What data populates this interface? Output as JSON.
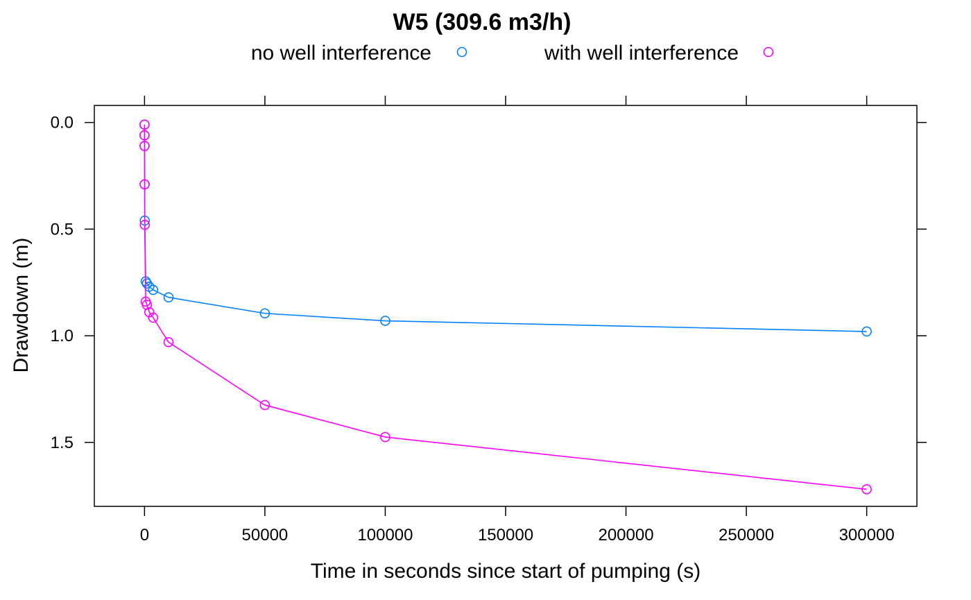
{
  "chart_data": {
    "type": "line",
    "title": "W5 (309.6 m3/h)",
    "xlabel": "Time in seconds since start of pumping (s)",
    "ylabel": "Drawdown (m)",
    "xlim": [
      -20850,
      320850
    ],
    "ylim": [
      1.8,
      -0.08
    ],
    "y_axis_reversed": true,
    "x_ticks": [
      0,
      50000,
      100000,
      150000,
      200000,
      250000,
      300000
    ],
    "y_ticks": [
      0.0,
      0.5,
      1.0,
      1.5
    ],
    "x_tick_labels": [
      "0",
      "50000",
      "100000",
      "150000",
      "200000",
      "250000",
      "300000"
    ],
    "y_tick_labels": [
      "0.0",
      "0.5",
      "1.0",
      "1.5"
    ],
    "grid": false,
    "legend_position": "top",
    "series": [
      {
        "name": "no well interference",
        "color": "#0080ff",
        "marker": "open-circle",
        "x": [
          1,
          10,
          20,
          60,
          100,
          500,
          1000,
          2000,
          3600,
          10000,
          50000,
          100000,
          300000
        ],
        "y": [
          0.01,
          0.06,
          0.11,
          0.29,
          0.46,
          0.745,
          0.755,
          0.77,
          0.785,
          0.82,
          0.895,
          0.93,
          0.98
        ]
      },
      {
        "name": "with well interference",
        "color": "#ff00ff",
        "marker": "open-circle",
        "x": [
          1,
          10,
          20,
          60,
          100,
          500,
          1000,
          2000,
          3600,
          10000,
          50000,
          100000,
          300000
        ],
        "y": [
          0.01,
          0.06,
          0.11,
          0.29,
          0.48,
          0.84,
          0.855,
          0.89,
          0.915,
          1.03,
          1.325,
          1.475,
          1.72
        ]
      }
    ]
  }
}
